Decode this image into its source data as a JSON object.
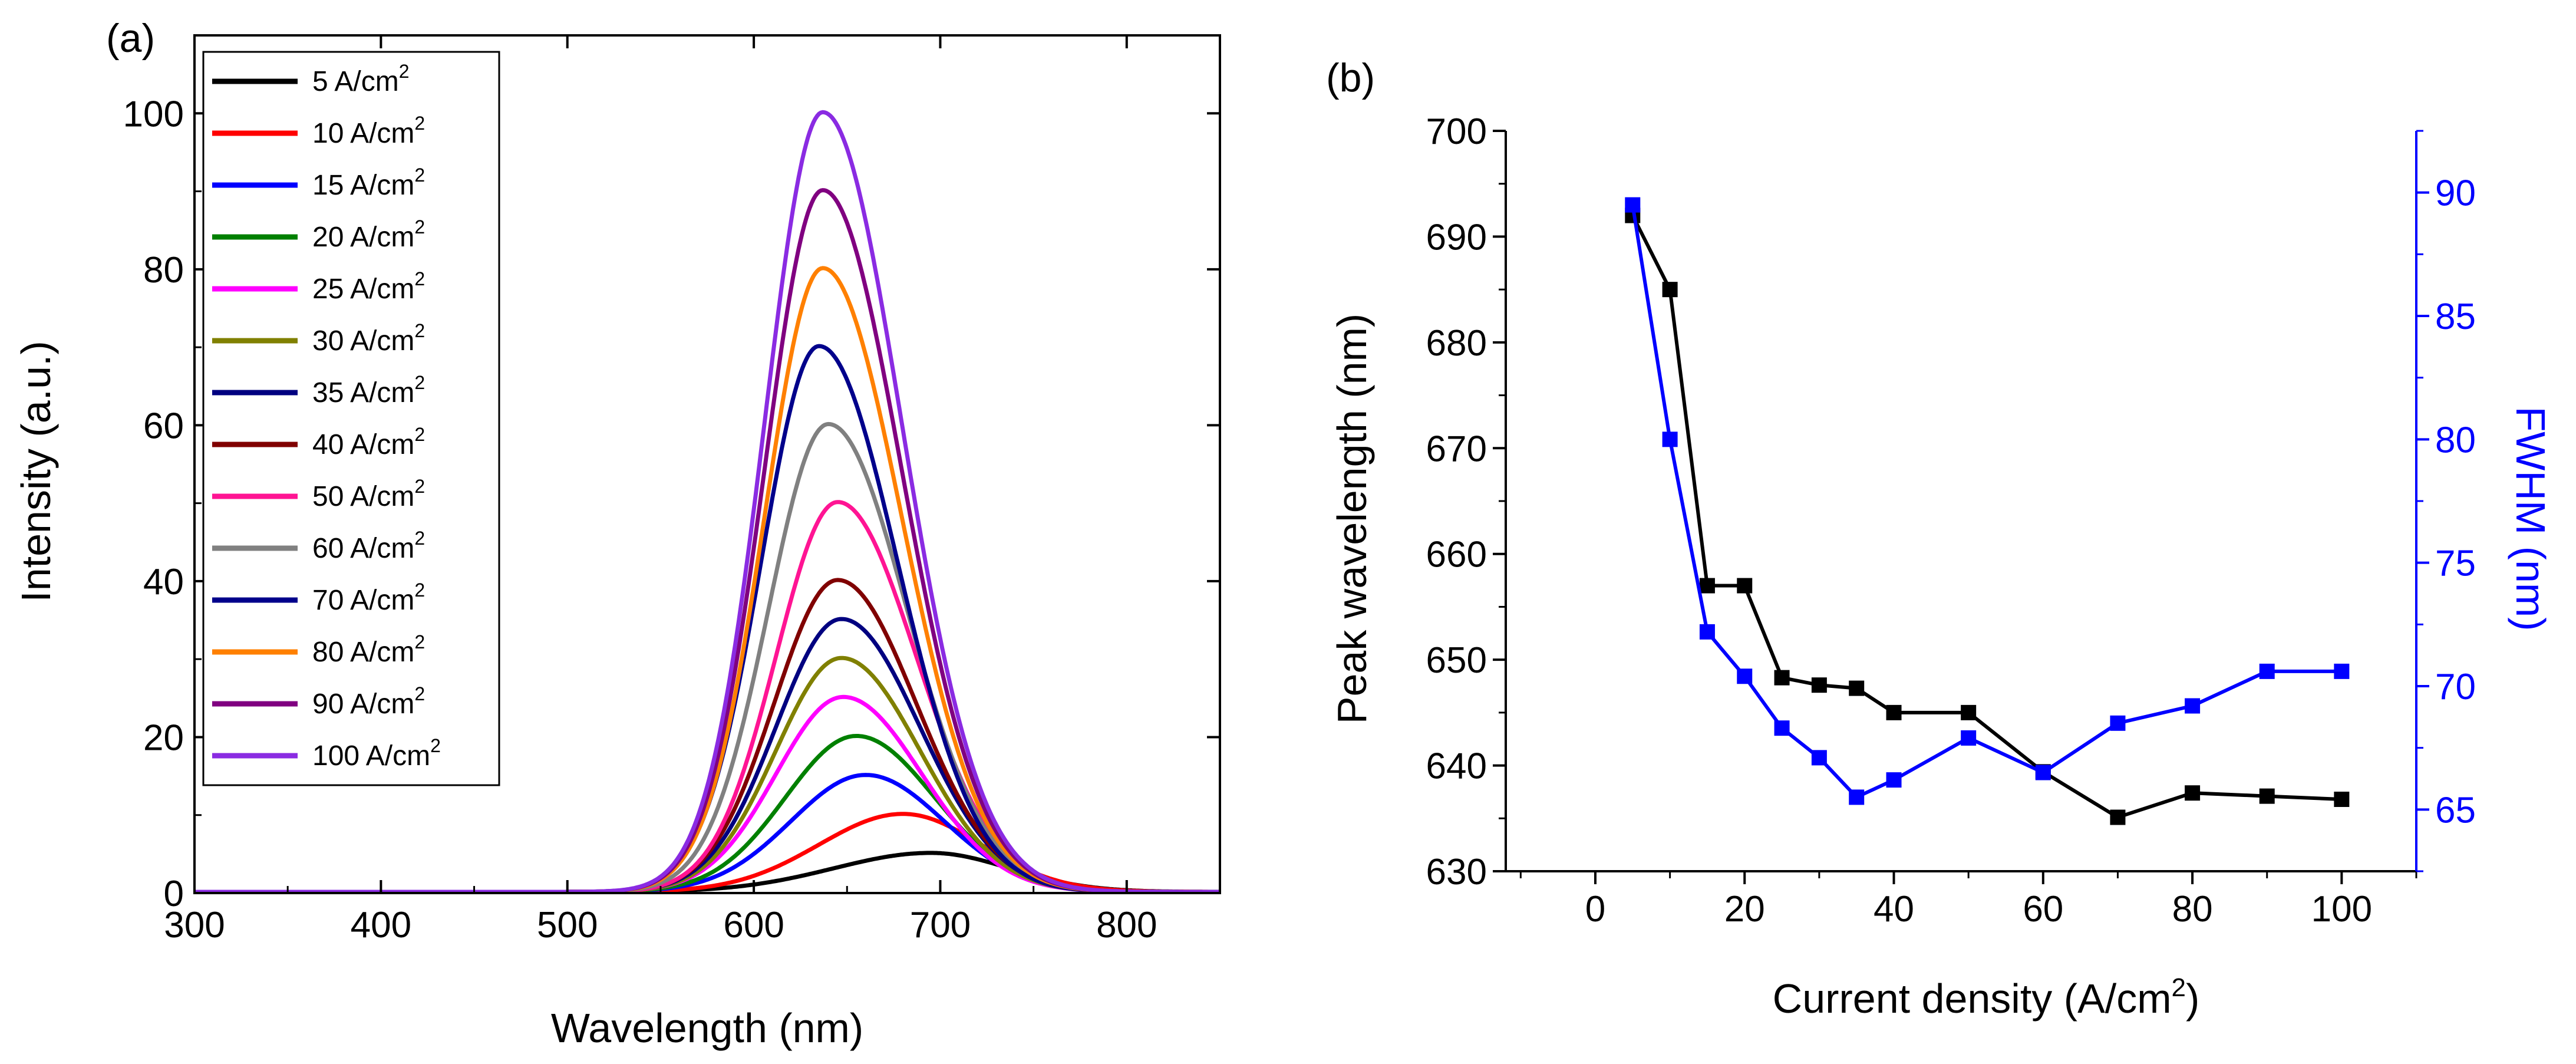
{
  "chart_data": [
    {
      "panel_label": "(a)",
      "type": "line",
      "xlabel": "Wavelength (nm)",
      "ylabel": "Intensity (a.u.)",
      "xlim": [
        300,
        850
      ],
      "ylim": [
        0,
        110
      ],
      "xticks": [
        300,
        400,
        500,
        600,
        700,
        800
      ],
      "yticks": [
        0,
        20,
        40,
        60,
        80,
        100
      ],
      "legend_position": "top-left",
      "legend_unit_base": "A/cm",
      "legend_unit_exp": "2",
      "series": [
        {
          "name": "5",
          "color": "#000000",
          "peak_x": 695,
          "peak_y": 5,
          "sigma_left": 52,
          "sigma_right": 42
        },
        {
          "name": "10",
          "color": "#ff0000",
          "peak_x": 680,
          "peak_y": 10,
          "sigma_left": 45,
          "sigma_right": 42
        },
        {
          "name": "15",
          "color": "#0000ff",
          "peak_x": 660,
          "peak_y": 15,
          "sigma_left": 40,
          "sigma_right": 42
        },
        {
          "name": "20",
          "color": "#008000",
          "peak_x": 655,
          "peak_y": 20,
          "sigma_left": 38,
          "sigma_right": 42
        },
        {
          "name": "25",
          "color": "#ff00ff",
          "peak_x": 648,
          "peak_y": 25,
          "sigma_left": 36,
          "sigma_right": 42
        },
        {
          "name": "30",
          "color": "#808000",
          "peak_x": 647,
          "peak_y": 30,
          "sigma_left": 35,
          "sigma_right": 42
        },
        {
          "name": "35",
          "color": "#000080",
          "peak_x": 647,
          "peak_y": 35,
          "sigma_left": 35,
          "sigma_right": 42
        },
        {
          "name": "40",
          "color": "#800000",
          "peak_x": 645,
          "peak_y": 40,
          "sigma_left": 34,
          "sigma_right": 42
        },
        {
          "name": "50",
          "color": "#ff1493",
          "peak_x": 645,
          "peak_y": 50,
          "sigma_left": 33,
          "sigma_right": 42
        },
        {
          "name": "60",
          "color": "#808080",
          "peak_x": 640,
          "peak_y": 60,
          "sigma_left": 32,
          "sigma_right": 42
        },
        {
          "name": "70",
          "color": "#00008b",
          "peak_x": 635,
          "peak_y": 70,
          "sigma_left": 31,
          "sigma_right": 42
        },
        {
          "name": "80",
          "color": "#ff8000",
          "peak_x": 637,
          "peak_y": 80,
          "sigma_left": 31,
          "sigma_right": 42
        },
        {
          "name": "90",
          "color": "#800080",
          "peak_x": 637,
          "peak_y": 90,
          "sigma_left": 31,
          "sigma_right": 42
        },
        {
          "name": "100",
          "color": "#8a2be2",
          "peak_x": 637,
          "peak_y": 100,
          "sigma_left": 31,
          "sigma_right": 42
        }
      ]
    },
    {
      "panel_label": "(b)",
      "type": "line",
      "xlabel_base": "Current density (A/cm",
      "xlabel_exp": "2",
      "xlabel_close": ")",
      "ylabel": "Peak wavelength (nm)",
      "y2label": "FWHM (nm)",
      "xlim": [
        -12,
        110
      ],
      "ylim": [
        630,
        700
      ],
      "y2lim": [
        62.5,
        92.5
      ],
      "xticks": [
        0,
        20,
        40,
        60,
        80,
        100
      ],
      "yticks": [
        630,
        640,
        650,
        660,
        670,
        680,
        690,
        700
      ],
      "y2ticks": [
        65,
        70,
        75,
        80,
        85,
        90
      ],
      "x": [
        5,
        10,
        15,
        20,
        25,
        30,
        35,
        40,
        50,
        60,
        70,
        80,
        90,
        100
      ],
      "series": [
        {
          "axis": "left",
          "color": "#000000",
          "values": [
            692,
            685,
            657,
            657,
            648.3,
            647.6,
            647.3,
            645,
            645,
            639.4,
            635.1,
            637.4,
            637.1,
            636.8
          ]
        },
        {
          "axis": "right",
          "color": "#0000ff",
          "values": [
            89.5,
            80,
            72.2,
            70.4,
            68.3,
            67.1,
            65.5,
            66.2,
            67.9,
            66.5,
            68.5,
            69.2,
            70.6,
            70.6
          ]
        }
      ]
    }
  ]
}
